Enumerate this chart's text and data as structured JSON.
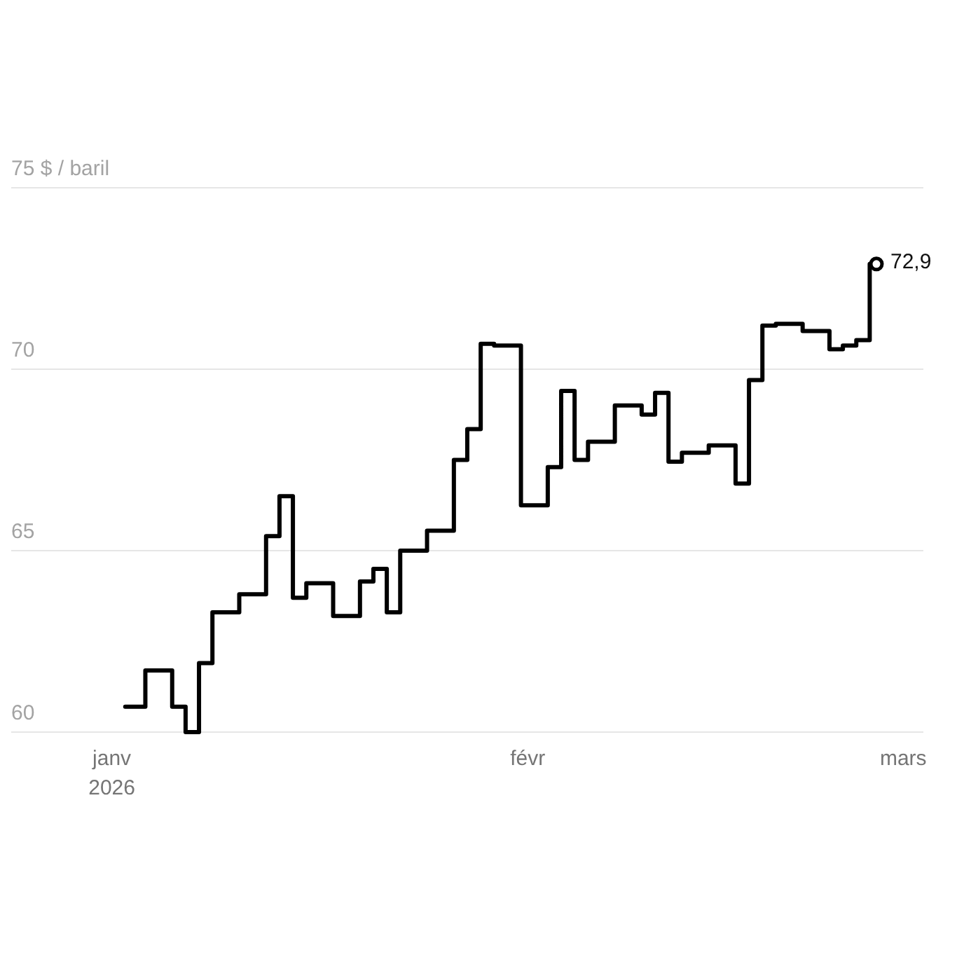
{
  "chart_data": {
    "type": "step",
    "x": [
      "2026-01-02",
      "2026-01-05",
      "2026-01-06",
      "2026-01-07",
      "2026-01-08",
      "2026-01-09",
      "2026-01-12",
      "2026-01-13",
      "2026-01-14",
      "2026-01-15",
      "2026-01-16",
      "2026-01-19",
      "2026-01-20",
      "2026-01-21",
      "2026-01-22",
      "2026-01-23",
      "2026-01-26",
      "2026-01-27",
      "2026-01-28",
      "2026-01-29",
      "2026-01-30",
      "2026-02-02",
      "2026-02-03",
      "2026-02-04",
      "2026-02-05",
      "2026-02-06",
      "2026-02-09",
      "2026-02-10",
      "2026-02-11",
      "2026-02-12",
      "2026-02-13",
      "2026-02-16",
      "2026-02-17",
      "2026-02-18",
      "2026-02-19",
      "2026-02-20",
      "2026-02-23",
      "2026-02-24",
      "2026-02-25",
      "2026-02-26",
      "2026-02-27"
    ],
    "series": [
      {
        "color": "#000000",
        "values": [
          60.7,
          61.7,
          60.7,
          60.0,
          61.9,
          63.3,
          63.8,
          65.4,
          66.5,
          63.7,
          64.1,
          63.2,
          64.15,
          64.5,
          63.3,
          65.0,
          65.55,
          67.5,
          68.35,
          70.7,
          70.65,
          66.25,
          67.3,
          69.4,
          67.5,
          68.0,
          69.0,
          68.75,
          69.35,
          67.45,
          67.7,
          67.9,
          66.85,
          69.7,
          71.2,
          71.25,
          71.05,
          70.55,
          70.65,
          70.8,
          72.9
        ]
      },
      {
        "type": "scatter",
        "color": "#000000",
        "marker": "circle",
        "x": [
          "2026-02-27"
        ],
        "values": [
          72.9
        ],
        "value_labels": [
          "72,9"
        ]
      }
    ],
    "xlim": [
      "2025-12-24T12:00",
      "2026-03-02T12:00"
    ],
    "xticks": [
      {
        "value": "2026-01-01",
        "label": "janv\n2026"
      },
      {
        "value": "2026-02-01",
        "label": "févr"
      },
      {
        "value": "2026-03-01",
        "label": "mars"
      }
    ],
    "ylim": [
      60,
      75
    ],
    "yticks": [
      60,
      65,
      70,
      {
        "value": 75,
        "label": "75 $ / baril"
      }
    ],
    "grid": "y"
  }
}
